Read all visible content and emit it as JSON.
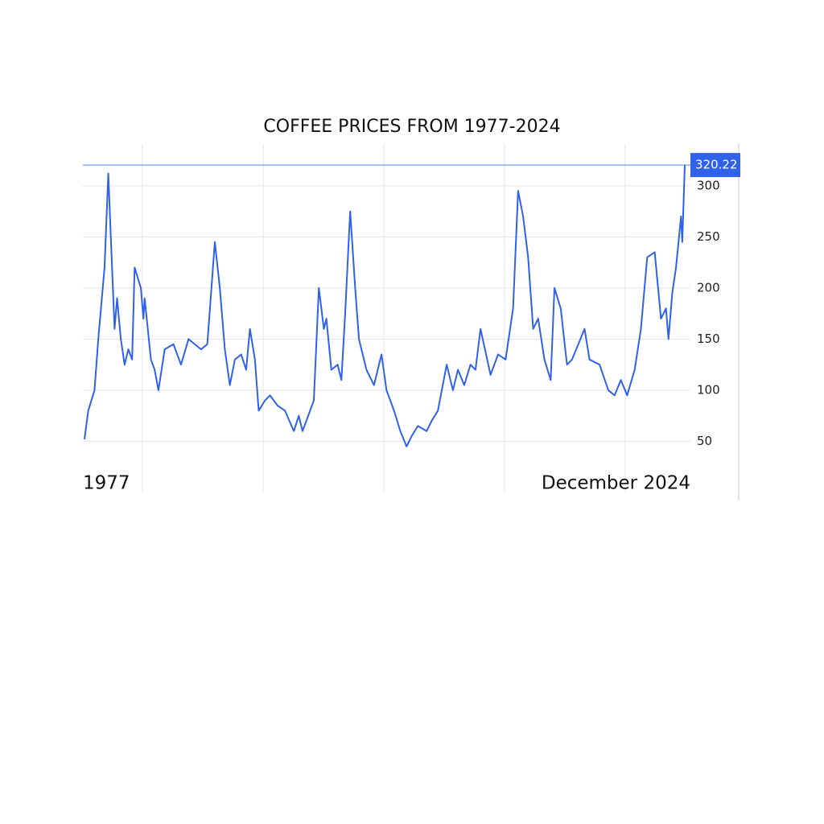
{
  "chart_data": {
    "type": "line",
    "title": "COFFEE PRICES FROM 1977-2024",
    "x": [
      1977.0,
      1977.3,
      1977.8,
      1978.1,
      1978.6,
      1978.9,
      1979.1,
      1979.4,
      1979.6,
      1979.9,
      1980.2,
      1980.5,
      1980.8,
      1981.0,
      1981.5,
      1981.7,
      1981.8,
      1982.3,
      1982.6,
      1982.9,
      1983.4,
      1984.1,
      1984.7,
      1985.3,
      1986.3,
      1986.8,
      1987.4,
      1987.8,
      1988.2,
      1988.6,
      1989.0,
      1989.5,
      1989.9,
      1990.2,
      1990.6,
      1990.9,
      1991.4,
      1991.8,
      1992.4,
      1993.0,
      1993.7,
      1994.1,
      1994.4,
      1995.0,
      1995.3,
      1995.7,
      1996.1,
      1996.3,
      1996.7,
      1997.2,
      1997.5,
      1997.8,
      1998.2,
      1998.6,
      1998.9,
      1999.5,
      2000.1,
      2000.7,
      2001.1,
      2001.7,
      2002.2,
      2002.7,
      2003.1,
      2003.6,
      2004.3,
      2004.7,
      2005.2,
      2005.9,
      2006.4,
      2006.8,
      2007.3,
      2007.8,
      2008.2,
      2008.6,
      2009.4,
      2010.0,
      2010.6,
      2011.2,
      2011.6,
      2012.0,
      2012.4,
      2012.8,
      2013.2,
      2013.7,
      2014.2,
      2014.5,
      2015.0,
      2015.5,
      2015.9,
      2016.9,
      2017.3,
      2018.1,
      2018.8,
      2019.3,
      2019.8,
      2020.3,
      2020.9,
      2021.4,
      2021.9,
      2022.5,
      2023.0,
      2023.4,
      2023.6,
      2023.9,
      2024.2,
      2024.6,
      2024.7,
      2024.9
    ],
    "series": [
      {
        "color": "#2f62e8",
        "values": [
          52,
          80,
          100,
          150,
          220,
          312,
          250,
          160,
          190,
          150,
          125,
          140,
          130,
          220,
          200,
          170,
          190,
          130,
          120,
          100,
          140,
          145,
          125,
          150,
          140,
          145,
          245,
          200,
          140,
          105,
          130,
          135,
          120,
          160,
          130,
          80,
          90,
          95,
          85,
          80,
          60,
          75,
          60,
          80,
          90,
          200,
          160,
          170,
          120,
          125,
          110,
          175,
          275,
          200,
          150,
          120,
          105,
          135,
          100,
          80,
          60,
          45,
          55,
          65,
          60,
          70,
          80,
          125,
          100,
          120,
          105,
          125,
          120,
          160,
          115,
          135,
          130,
          180,
          295,
          270,
          230,
          160,
          170,
          130,
          110,
          200,
          180,
          125,
          130,
          160,
          130,
          125,
          100,
          95,
          110,
          95,
          120,
          160,
          230,
          235,
          170,
          180,
          150,
          195,
          220,
          270,
          245,
          320.22
        ]
      }
    ],
    "xlim": [
      1977.0,
      2024.9
    ],
    "xticks": [
      {
        "value": 1977.0,
        "label": "1977"
      },
      {
        "value": 2024.9,
        "label": "December 2024"
      }
    ],
    "ylim": [
      0,
      340
    ],
    "yticks": [
      50,
      100,
      150,
      200,
      250,
      300
    ],
    "grid": true
  }
}
